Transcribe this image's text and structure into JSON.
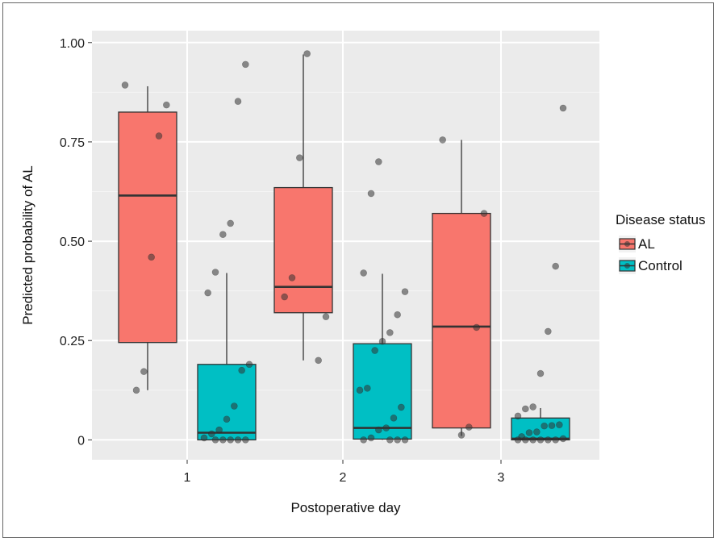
{
  "chart_data": {
    "type": "box",
    "xlabel": "Postoperative day",
    "ylabel": "Predicted probability of AL",
    "categories": [
      "1",
      "2",
      "3"
    ],
    "y_ticks": [
      "0",
      "0.25",
      "0.50",
      "0.75",
      "1.00"
    ],
    "ylim": [
      -0.05,
      1.03
    ],
    "grid": true,
    "legend": {
      "title": "Disease status",
      "placement": "right",
      "entries": [
        "AL",
        "Control"
      ]
    },
    "series": [
      {
        "name": "AL",
        "color": "#F8766D",
        "boxes": [
          {
            "category": "1",
            "whisker_low": 0.125,
            "q1": 0.245,
            "median": 0.615,
            "q3": 0.825,
            "whisker_high": 0.89
          },
          {
            "category": "2",
            "whisker_low": 0.2,
            "q1": 0.32,
            "median": 0.385,
            "q3": 0.635,
            "whisker_high": 0.97
          },
          {
            "category": "3",
            "whisker_low": 0.01,
            "q1": 0.03,
            "median": 0.285,
            "q3": 0.57,
            "whisker_high": 0.755
          }
        ],
        "points": [
          {
            "category": "1",
            "values": [
              0.893,
              0.843,
              0.765,
              0.46,
              0.172,
              0.125
            ]
          },
          {
            "category": "2",
            "values": [
              0.972,
              0.71,
              0.408,
              0.36,
              0.31,
              0.2
            ]
          },
          {
            "category": "3",
            "values": [
              0.755,
              0.57,
              0.283,
              0.032,
              0.012
            ]
          }
        ]
      },
      {
        "name": "Control",
        "color": "#00BFC4",
        "boxes": [
          {
            "category": "1",
            "whisker_low": 0.0,
            "q1": 0.0,
            "median": 0.018,
            "q3": 0.19,
            "whisker_high": 0.42
          },
          {
            "category": "2",
            "whisker_low": 0.0,
            "q1": 0.002,
            "median": 0.03,
            "q3": 0.242,
            "whisker_high": 0.418
          },
          {
            "category": "3",
            "whisker_low": 0.0,
            "q1": 0.0,
            "median": 0.003,
            "q3": 0.055,
            "whisker_high": 0.08
          }
        ],
        "points": [
          {
            "category": "1",
            "values": [
              0.945,
              0.852,
              0.545,
              0.517,
              0.422,
              0.37,
              0.19,
              0.175,
              0.085,
              0.052,
              0.025,
              0.015,
              0.005,
              0.0,
              0.0,
              0.0,
              0.0,
              0.0
            ]
          },
          {
            "category": "2",
            "values": [
              0.7,
              0.62,
              0.42,
              0.373,
              0.315,
              0.27,
              0.248,
              0.225,
              0.13,
              0.125,
              0.082,
              0.055,
              0.03,
              0.025,
              0.005,
              0.0,
              0.0,
              0.0,
              0.0
            ]
          },
          {
            "category": "3",
            "values": [
              0.835,
              0.437,
              0.273,
              0.167,
              0.083,
              0.078,
              0.06,
              0.038,
              0.036,
              0.035,
              0.02,
              0.018,
              0.008,
              0.003,
              0.0,
              0.0,
              0.0,
              0.0,
              0.0,
              0.0
            ]
          }
        ]
      }
    ]
  }
}
